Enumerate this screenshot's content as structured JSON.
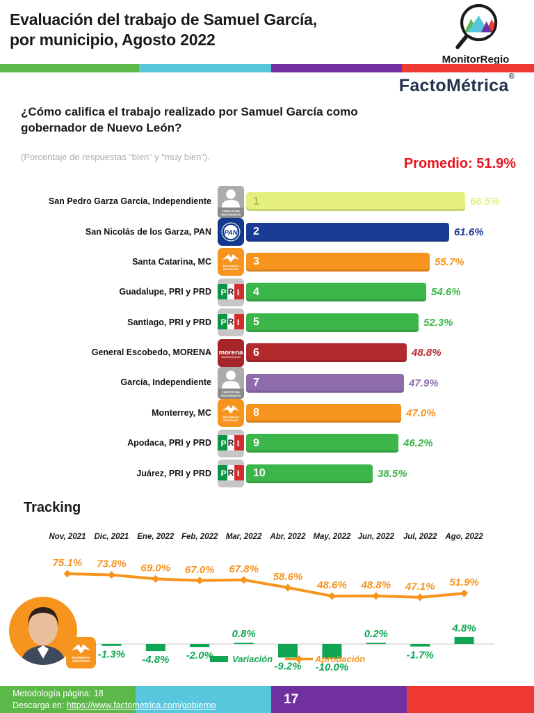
{
  "header": {
    "title": "Evaluación del trabajo de Samuel García, por municipio, Agosto 2022",
    "logo": "MonitorRegio",
    "brand": "FactoMétrica",
    "registered": "®"
  },
  "stripe_colors": [
    "#5CB849",
    "#58C7DD",
    "#7030A0",
    "#EE3A33"
  ],
  "question": {
    "text": "¿Cómo califica el trabajo realizado por Samuel García como gobernador de Nuevo León?",
    "note": "(Porcentaje de respuestas “bien” y “muy bien”).",
    "average": "Promedio: 51.9%"
  },
  "icons": {
    "independiente_caption_1": "CANDIDATURA",
    "independiente_caption_2": "INDEPENDIENTE",
    "pan_label": "PAN",
    "pri_label": "PRI",
    "morena_label": "morena",
    "mc_caption_1": "MOVIMIENTO",
    "mc_caption_2": "CIUDADANO"
  },
  "chart_data": [
    {
      "type": "bar",
      "orientation": "horizontal",
      "unit": "%",
      "xlim": [
        0,
        70
      ],
      "items": [
        {
          "label": "San Pedro Garza García, Independiente",
          "rank": "1",
          "value": 66.5,
          "value_label": "66.5%",
          "color": "#E4EF7E",
          "rank_color": "#AFC14D",
          "icon": "independiente"
        },
        {
          "label": "San Nicolás de los Garza, PAN",
          "rank": "2",
          "value": 61.6,
          "value_label": "61.6%",
          "color": "#1B3C94",
          "rank_color": "#FFFFFF",
          "icon": "pan"
        },
        {
          "label": "Santa Catarina, MC",
          "rank": "3",
          "value": 55.7,
          "value_label": "55.7%",
          "color": "#F7941E",
          "rank_color": "#FFFFFF",
          "icon": "mc"
        },
        {
          "label": "Guadalupe, PRI y PRD",
          "rank": "4",
          "value": 54.6,
          "value_label": "54.6%",
          "color": "#3CB54A",
          "rank_color": "#FFFFFF",
          "icon": "pri"
        },
        {
          "label": "Santiago, PRI y PRD",
          "rank": "5",
          "value": 52.3,
          "value_label": "52.3%",
          "color": "#3CB54A",
          "rank_color": "#FFFFFF",
          "icon": "pri"
        },
        {
          "label": "General Escobedo, MORENA",
          "rank": "6",
          "value": 48.8,
          "value_label": "48.8%",
          "color": "#B2292E",
          "rank_color": "#FFFFFF",
          "icon": "morena"
        },
        {
          "label": "García, Independiente",
          "rank": "7",
          "value": 47.9,
          "value_label": "47.9%",
          "color": "#8E6CAB",
          "rank_color": "#FFFFFF",
          "icon": "independiente"
        },
        {
          "label": "Monterrey, MC",
          "rank": "8",
          "value": 47.0,
          "value_label": "47.0%",
          "color": "#F7941E",
          "rank_color": "#FFFFFF",
          "icon": "mc"
        },
        {
          "label": "Apodaca, PRI y PRD",
          "rank": "9",
          "value": 46.2,
          "value_label": "46.2%",
          "color": "#3CB54A",
          "rank_color": "#FFFFFF",
          "icon": "pri"
        },
        {
          "label": "Juárez, PRI y PRD",
          "rank": "10",
          "value": 38.5,
          "value_label": "38.5%",
          "color": "#3CB54A",
          "rank_color": "#FFFFFF",
          "icon": "pri"
        }
      ]
    },
    {
      "type": "line",
      "title": "Tracking",
      "categories": [
        "Nov, 2021",
        "Dic, 2021",
        "Ene, 2022",
        "Feb, 2022",
        "Mar, 2022",
        "Abr, 2022",
        "May, 2022",
        "Jun, 2022",
        "Jul, 2022",
        "Ago, 2022"
      ],
      "series": [
        {
          "name": "Aprobación",
          "type": "line",
          "color": "#F7941E",
          "values": [
            75.1,
            73.8,
            69.0,
            67.0,
            67.8,
            58.6,
            48.6,
            48.8,
            47.1,
            51.9
          ],
          "labels": [
            "75.1%",
            "73.8%",
            "69.0%",
            "67.0%",
            "67.8%",
            "58.6%",
            "48.6%",
            "48.8%",
            "47.1%",
            "51.9%"
          ]
        },
        {
          "name": "Variación",
          "type": "bar",
          "color": "#0FA653",
          "start_index": 1,
          "values": [
            -1.3,
            -4.8,
            -2.0,
            0.8,
            -9.2,
            -10.0,
            0.2,
            -1.7,
            4.8
          ],
          "labels": [
            "-1.3%",
            "-4.8%",
            "-2.0%",
            "0.8%",
            "-9.2%",
            "-10.0%",
            "0.2%",
            "-1.7%",
            "4.8%"
          ]
        }
      ],
      "legend_position": "bottom"
    }
  ],
  "footer": {
    "methodology": "Metodología página: 18",
    "download_prefix": "Descarga en: ",
    "link_text": "https://www.factometrica.com/gobierno",
    "link_href": "https://www.factometrica.com/gobierno",
    "page": "17"
  }
}
